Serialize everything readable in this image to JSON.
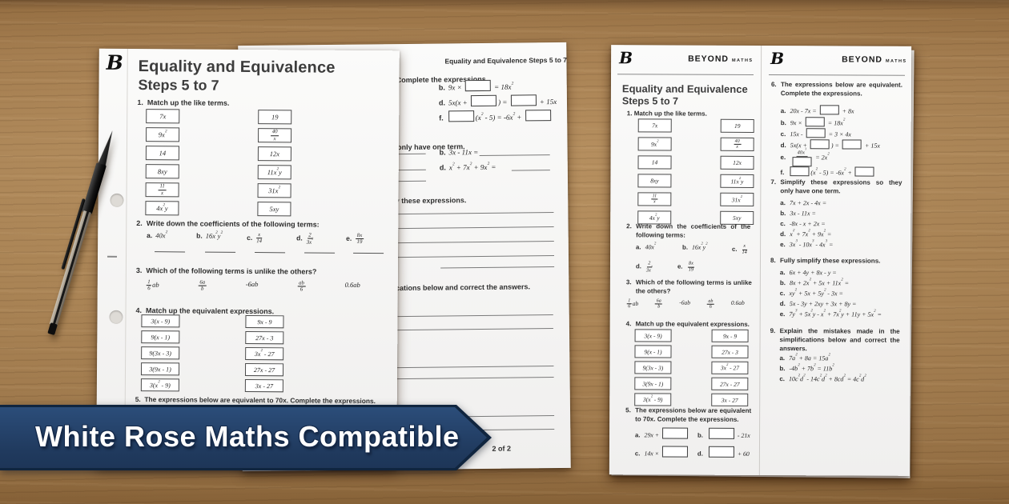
{
  "banner": {
    "text": "White Rose Maths Compatible",
    "bg": "#203a5e"
  },
  "brand": {
    "logo": "B",
    "name": "BEYOND",
    "sub": "MATHS"
  },
  "worksheet": {
    "title1": "Equality and Equivalence",
    "title2": "Steps 5 to 7",
    "header_small": "Equality and Equivalence Steps 5 to 7",
    "page_label": "2 of 2",
    "q1": {
      "num": "1.",
      "label": "Match up the like terms.",
      "left": [
        "7x",
        "9x^2",
        "14",
        "8xy",
        "{11/x}",
        "4x^2y"
      ],
      "right": [
        "19",
        "{40/x}",
        "12x",
        "11x^2y",
        "31x^2",
        "5xy"
      ]
    },
    "q2": {
      "num": "2.",
      "label": "Write down the coefficients of the following terms:",
      "items": [
        "40x^2",
        "16x^2y^2",
        "{x/14}",
        "{2/3x^3}",
        "{8x/19}"
      ]
    },
    "q3": {
      "num": "3.",
      "label": "Which of the following terms is unlike the others?",
      "items": [
        "{1/6}ab",
        "{6a/b}",
        "-6ab",
        "{ab/6}",
        "0.6ab"
      ]
    },
    "q4": {
      "num": "4.",
      "label": "Match up the equivalent expressions.",
      "left": [
        "3(x - 9)",
        "9(x - 1)",
        "9(3x - 3)",
        "3(9x - 1)",
        "3(x^2 - 9)"
      ],
      "right": [
        "9x - 9",
        "27x - 3",
        "3x^2 - 27",
        "27x - 27",
        "3x - 27"
      ]
    },
    "q5": {
      "num": "5.",
      "label": "The expressions below are equivalent to 70x. Complete the expressions.",
      "items": [
        "29x + []",
        "[] - 21x",
        "14x × []",
        "[] + 60"
      ]
    },
    "q6": {
      "num": "6.",
      "label": "The expressions below are equivalent. Complete the expressions.",
      "items": [
        "20x - 7x = [] + 8x",
        "9x × [] = 18x^2",
        "15x - [] = 3 × 4x",
        "5x(x + []) = [] + 15x",
        "{40x^3/[]} = 2x^2",
        "[](x^2 - 5) = -6x^2 + []"
      ]
    },
    "q7": {
      "num": "7.",
      "label": "Simplify these expressions so they only have one term.",
      "items": [
        "7x + 2x - 4x =",
        "3x - 11x =",
        "-8x - x + 2x =",
        "x^2 + 7x^2 + 9x^2 =",
        "3x^3 - 10x^3 - 4x^3 ="
      ]
    },
    "q8": {
      "num": "8.",
      "label": "Fully simplify these expressions.",
      "items": [
        "6x + 4y + 8x - y =",
        "8x + 2x^2 + 5x + 11x^2 =",
        "xy^2 + 5x + 5y^2 - 3x =",
        "5x - 3y + 2xy + 3x + 8y =",
        "7y^3 + 5x^2y - x^2 + 7x^2y + 11y + 5x^2 ="
      ]
    },
    "q9": {
      "num": "9.",
      "label": "Explain the mistakes made in the simplifications below and correct the answers.",
      "items": [
        "7a^2 + 8a = 15a^2",
        "-4b^2 + 7b^2 = 11b^2",
        "10c^2d^2 - 14c^2d^2 + 8cd^2 = 4c^2d^2"
      ]
    },
    "page2_letters": {
      "complete": [
        "b.",
        "d.",
        "f."
      ],
      "oneterm": [
        "b.",
        "d."
      ]
    }
  }
}
